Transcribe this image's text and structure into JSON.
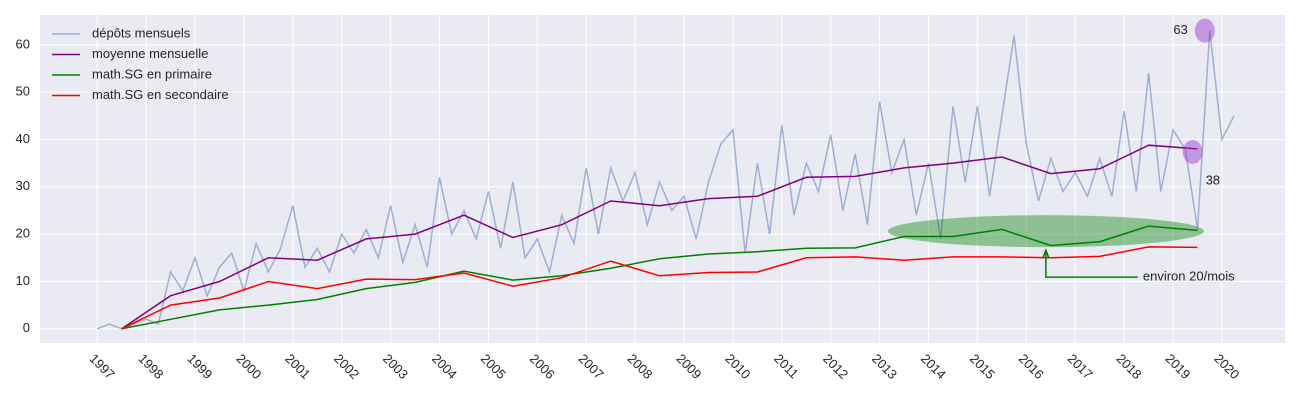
{
  "chart_data": {
    "type": "line",
    "xlim": [
      1995.83,
      2021.29
    ],
    "ylim": [
      -3,
      66.3
    ],
    "xticks": [
      1997,
      1998,
      1999,
      2000,
      2001,
      2002,
      2003,
      2004,
      2005,
      2006,
      2007,
      2008,
      2009,
      2010,
      2011,
      2012,
      2013,
      2014,
      2015,
      2016,
      2017,
      2018,
      2019,
      2020
    ],
    "yticks": [
      0,
      10,
      20,
      30,
      40,
      50,
      60
    ],
    "grid": true,
    "legend": "upper left",
    "series": [
      {
        "name": "dépôts mensuels",
        "color": "#8fa5cf",
        "x": [
          1997.0,
          1997.25,
          1997.5,
          1997.75,
          1998.0,
          1998.25,
          1998.5,
          1998.75,
          1999.0,
          1999.25,
          1999.5,
          1999.75,
          2000.0,
          2000.25,
          2000.5,
          2000.75,
          2001.0,
          2001.25,
          2001.5,
          2001.75,
          2002.0,
          2002.25,
          2002.5,
          2002.75,
          2003.0,
          2003.25,
          2003.5,
          2003.75,
          2004.0,
          2004.25,
          2004.5,
          2004.75,
          2005.0,
          2005.25,
          2005.5,
          2005.75,
          2006.0,
          2006.25,
          2006.5,
          2006.75,
          2007.0,
          2007.25,
          2007.5,
          2007.75,
          2008.0,
          2008.25,
          2008.5,
          2008.75,
          2009.0,
          2009.25,
          2009.5,
          2009.75,
          2010.0,
          2010.25,
          2010.5,
          2010.75,
          2011.0,
          2011.25,
          2011.5,
          2011.75,
          2012.0,
          2012.25,
          2012.5,
          2012.75,
          2013.0,
          2013.25,
          2013.5,
          2013.75,
          2014.0,
          2014.25,
          2014.5,
          2014.75,
          2015.0,
          2015.25,
          2015.5,
          2015.75,
          2016.0,
          2016.25,
          2016.5,
          2016.75,
          2017.0,
          2017.25,
          2017.5,
          2017.75,
          2018.0,
          2018.25,
          2018.5,
          2018.75,
          2019.0,
          2019.25,
          2019.5,
          2019.75,
          2020.0,
          2020.25
        ],
        "values": [
          0,
          1,
          0,
          1,
          2,
          1,
          12,
          8,
          15,
          7,
          13,
          16,
          8,
          18,
          12,
          17,
          26,
          13,
          17,
          12,
          20,
          16,
          21,
          15,
          26,
          14,
          22,
          13,
          32,
          20,
          25,
          19,
          29,
          17,
          31,
          15,
          19,
          12,
          24,
          18,
          34,
          20,
          34,
          27,
          33,
          22,
          31,
          25,
          28,
          19,
          31,
          39,
          42,
          16,
          35,
          20,
          43,
          24,
          35,
          29,
          41,
          25,
          37,
          22,
          48,
          33,
          40,
          24,
          35,
          19,
          47,
          31,
          47,
          28,
          45,
          62,
          39,
          27,
          36,
          29,
          33,
          28,
          36,
          28,
          46,
          29,
          54,
          29,
          42,
          38,
          21,
          63,
          40,
          45
        ]
      },
      {
        "name": "moyenne mensuelle",
        "color": "#800080",
        "x": [
          1997.5,
          1998.5,
          1999.5,
          2000.5,
          2001.5,
          2002.5,
          2003.5,
          2004.5,
          2005.5,
          2006.5,
          2007.5,
          2008.5,
          2009.5,
          2010.5,
          2011.5,
          2012.5,
          2013.5,
          2014.5,
          2015.5,
          2016.5,
          2017.5,
          2018.5,
          2019.5
        ],
        "values": [
          0,
          7,
          10,
          15,
          14.5,
          19,
          20,
          24,
          19.3,
          22,
          27,
          26,
          27.5,
          28,
          32,
          32.2,
          34,
          35,
          36.3,
          32.8,
          33.8,
          38.8,
          38
        ]
      },
      {
        "name": "math.SG en primaire",
        "color": "#008000",
        "x": [
          1997.5,
          1998.5,
          1999.5,
          2000.5,
          2001.5,
          2002.5,
          2003.5,
          2004.5,
          2005.5,
          2006.5,
          2007.5,
          2008.5,
          2009.5,
          2010.5,
          2011.5,
          2012.5,
          2013.5,
          2014.5,
          2015.5,
          2016.5,
          2017.5,
          2018.5,
          2019.5
        ],
        "values": [
          0,
          2,
          4,
          5,
          6.2,
          8.5,
          9.8,
          12.2,
          10.3,
          11.2,
          12.8,
          14.8,
          15.8,
          16.3,
          17,
          17.1,
          19.5,
          19.5,
          21,
          17.6,
          18.4,
          21.7,
          20.8
        ]
      },
      {
        "name": "math.SG en secondaire",
        "color": "#ff0000",
        "x": [
          1997.5,
          1998.5,
          1999.5,
          2000.5,
          2001.5,
          2002.5,
          2003.5,
          2004.5,
          2005.5,
          2006.5,
          2007.5,
          2008.5,
          2009.5,
          2010.5,
          2011.5,
          2012.5,
          2013.5,
          2014.5,
          2015.5,
          2016.5,
          2017.5,
          2018.5,
          2019.5
        ],
        "values": [
          0,
          5,
          6.5,
          10,
          8.5,
          10.5,
          10.4,
          11.8,
          9,
          10.8,
          14.3,
          11.2,
          11.9,
          12,
          15,
          15.2,
          14.5,
          15.2,
          15.2,
          15,
          15.3,
          17.3,
          17.2
        ]
      }
    ],
    "annotations": [
      {
        "text": "63",
        "x": 2019.65,
        "y": 63
      },
      {
        "text": "38",
        "x": 2019.4,
        "y": 38
      },
      {
        "text": "environ 20/mois",
        "x": 2016.4,
        "y": 20
      }
    ]
  }
}
